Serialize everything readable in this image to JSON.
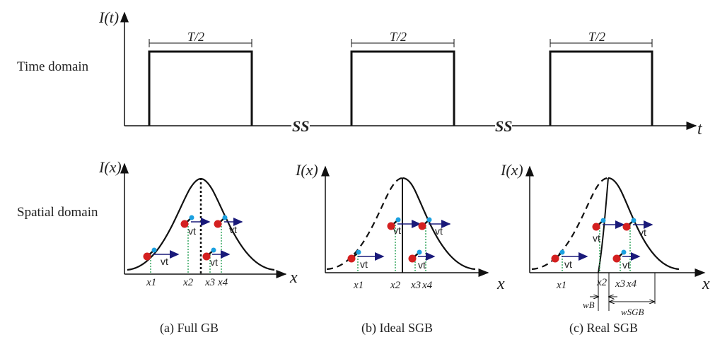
{
  "rows": {
    "time_label": "Time domain",
    "spatial_label": "Spatial domain"
  },
  "time_axis": {
    "y_label": "I(t)",
    "x_label": "t",
    "pulse_label": "T/2",
    "break_mark": "SS"
  },
  "spatial_axis": {
    "y_label": "I(x)",
    "x_label": "x",
    "positions": [
      "x1",
      "x2",
      "x3",
      "x4"
    ],
    "motion_label": "vt"
  },
  "panels": [
    {
      "caption": "(a) Full GB"
    },
    {
      "caption": "(b) Ideal SGB"
    },
    {
      "caption": "(c) Real SGB",
      "widths": [
        "wB",
        "wSGB"
      ]
    }
  ],
  "colors": {
    "curve": "#111111",
    "arrow": "#1a1a7a",
    "atom_red": "#d42020",
    "atom_blue": "#1aa0e0",
    "guide_green": "#1a9a4a"
  }
}
